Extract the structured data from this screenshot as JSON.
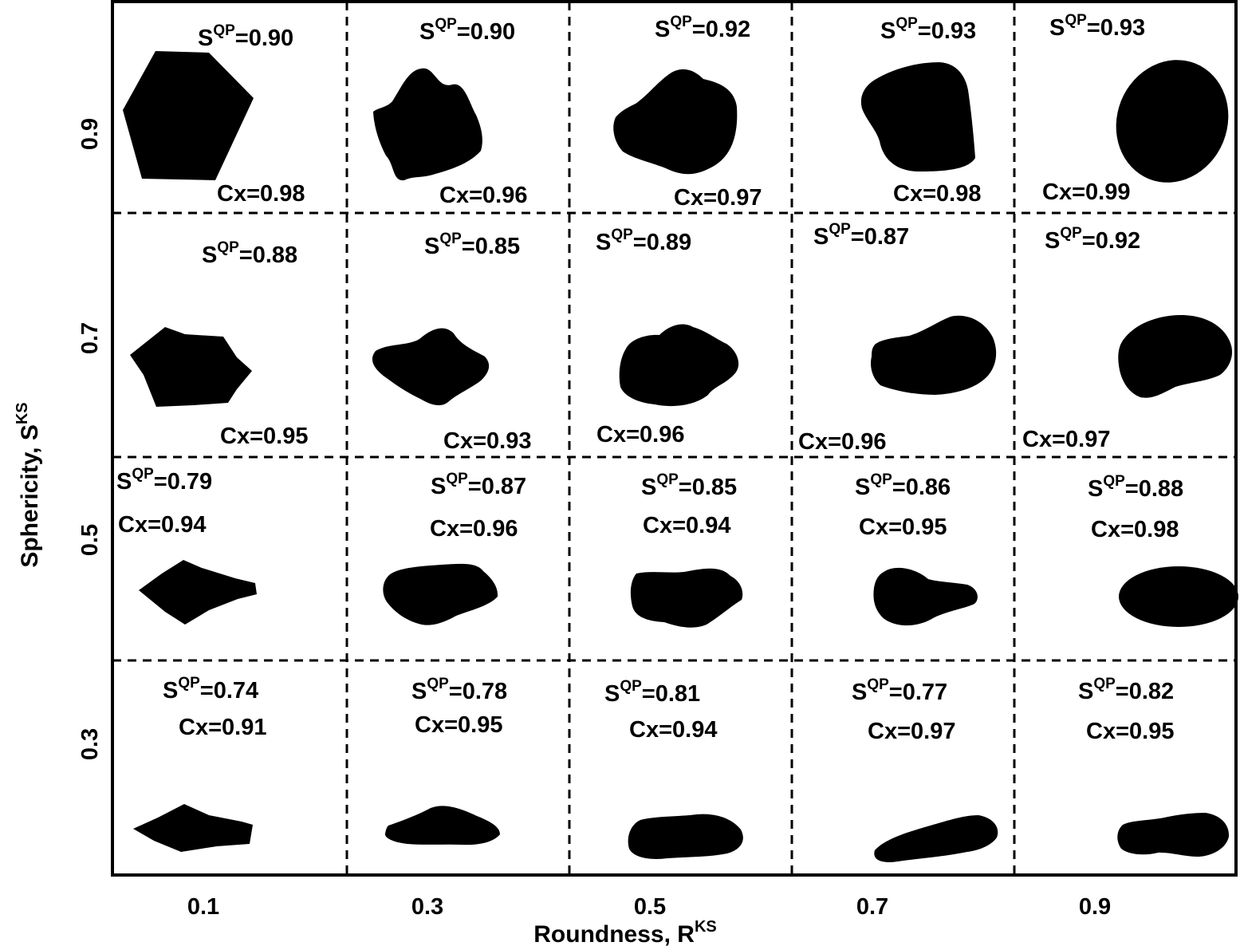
{
  "chart_data": {
    "type": "table",
    "xlabel": "Roundness, R",
    "xlabel_sup": "KS",
    "ylabel": "Sphericity, S",
    "ylabel_sup": "KS",
    "x_ticks": [
      "0.1",
      "0.3",
      "0.5",
      "0.7",
      "0.9"
    ],
    "y_ticks": [
      "0.9",
      "0.7",
      "0.5",
      "0.3"
    ],
    "sqp_prefix": "S",
    "sqp_sup": "QP",
    "rows": [
      {
        "sphericity": "0.9",
        "cells": [
          {
            "sqp": "=0.90",
            "cx": "Cx=0.98"
          },
          {
            "sqp": "=0.90",
            "cx": "Cx=0.96"
          },
          {
            "sqp": "=0.92",
            "cx": "Cx=0.97"
          },
          {
            "sqp": "=0.93",
            "cx": "Cx=0.98"
          },
          {
            "sqp": "=0.93",
            "cx": "Cx=0.99"
          }
        ]
      },
      {
        "sphericity": "0.7",
        "cells": [
          {
            "sqp": "=0.88",
            "cx": "Cx=0.95"
          },
          {
            "sqp": "=0.85",
            "cx": "Cx=0.93"
          },
          {
            "sqp": "=0.89",
            "cx": "Cx=0.96"
          },
          {
            "sqp": "=0.87",
            "cx": "Cx=0.96"
          },
          {
            "sqp": "=0.92",
            "cx": "Cx=0.97"
          }
        ]
      },
      {
        "sphericity": "0.5",
        "cells": [
          {
            "sqp": "=0.79",
            "cx": "Cx=0.94"
          },
          {
            "sqp": "=0.87",
            "cx": "Cx=0.96"
          },
          {
            "sqp": "=0.85",
            "cx": "Cx=0.94"
          },
          {
            "sqp": "=0.86",
            "cx": "Cx=0.95"
          },
          {
            "sqp": "=0.88",
            "cx": "Cx=0.98"
          }
        ]
      },
      {
        "sphericity": "0.3",
        "cells": [
          {
            "sqp": "=0.74",
            "cx": "Cx=0.91"
          },
          {
            "sqp": "=0.78",
            "cx": "Cx=0.95"
          },
          {
            "sqp": "=0.81",
            "cx": "Cx=0.94"
          },
          {
            "sqp": "=0.77",
            "cx": "Cx=0.97"
          },
          {
            "sqp": "=0.82",
            "cx": "Cx=0.95"
          }
        ]
      }
    ]
  }
}
